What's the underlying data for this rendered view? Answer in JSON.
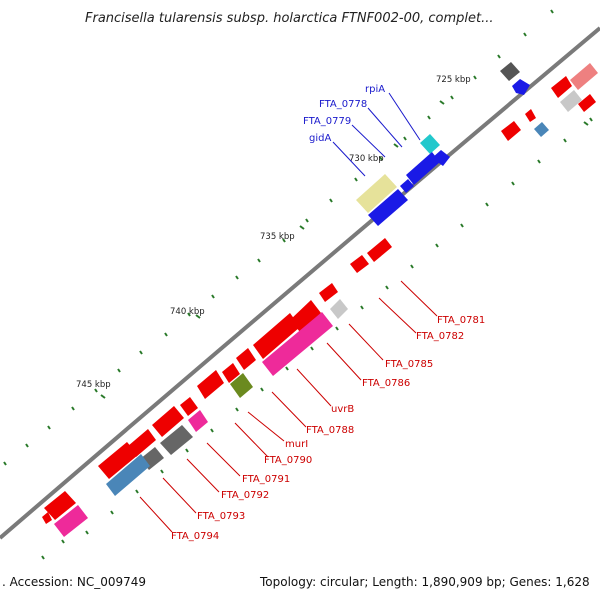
{
  "header": {
    "title": "Francisella tularensis subsp. holarctica FTNF002-00, complet..."
  },
  "footer": {
    "accession": ". Accession: NC_009749",
    "summary": "Topology: circular; Length: 1,890,909 bp; Genes: 1,628"
  },
  "ruler": {
    "ticks": [
      "725 kbp",
      "730 kbp",
      "735 kbp",
      "740 kbp",
      "745 kbp"
    ]
  },
  "genes": {
    "upper_labels": [
      "rpiA",
      "FTA_0778",
      "FTA_0779",
      "gidA"
    ],
    "lower_labels": [
      "FTA_0781",
      "FTA_0782",
      "FTA_0785",
      "FTA_0786",
      "uvrB",
      "FTA_0788",
      "murI",
      "FTA_0790",
      "FTA_0791",
      "FTA_0792",
      "FTA_0793",
      "FTA_0794"
    ]
  },
  "colors": {
    "backbone": "#7a7a7a",
    "forward_gene": "#1a1ae6",
    "reverse_gene": "#ee0000",
    "upper_label": "#1a1acc",
    "lower_label": "#cc0000",
    "tick_mark": "#2a7a2a",
    "pseudo_yellow": "#e6e29a",
    "pink": "#ee2a9a",
    "grey": "#666666",
    "light_grey": "#c8c8c8",
    "olive": "#6b8a1f",
    "steel_blue": "#4a86b8",
    "cyan": "#22c8cc"
  }
}
